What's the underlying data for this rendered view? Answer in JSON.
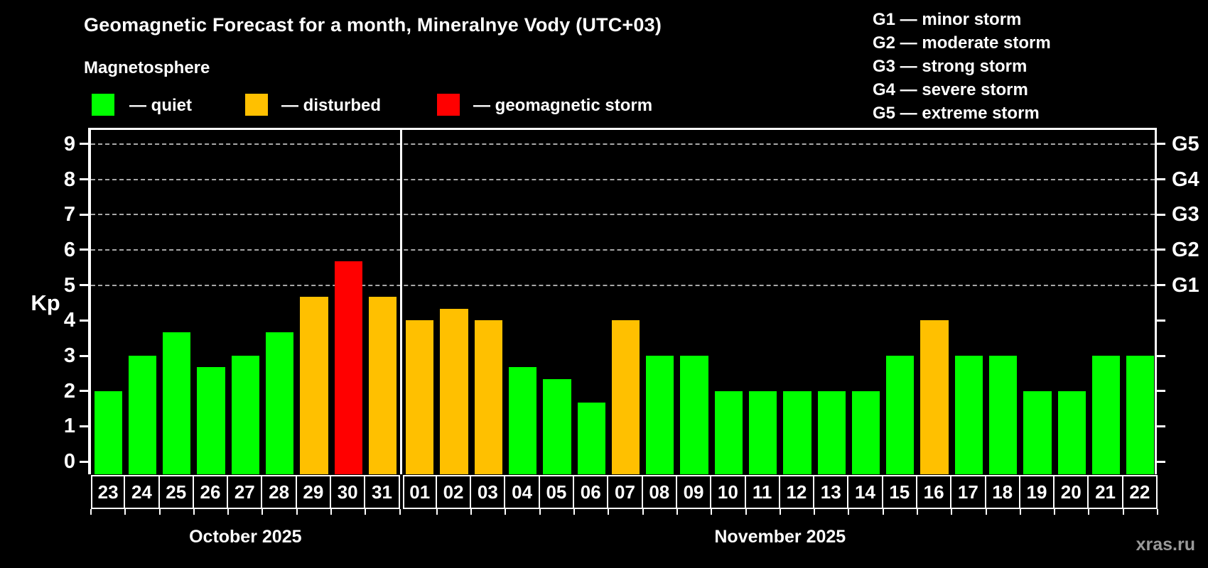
{
  "title": "Geomagnetic Forecast for a month, Mineralnye Vody (UTC+03)",
  "subtitle": "Magnetosphere",
  "legend": [
    {
      "key": "quiet",
      "label": "— quiet",
      "color": "#00ff00"
    },
    {
      "key": "disturbed",
      "label": "— disturbed",
      "color": "#ffc000"
    },
    {
      "key": "storm",
      "label": "— geomagnetic storm",
      "color": "#ff0000"
    }
  ],
  "g_scale_legend": [
    "G1 — minor storm",
    "G2 — moderate storm",
    "G3 — strong storm",
    "G4 — severe storm",
    "G5 — extreme storm"
  ],
  "kp_axis_label": "Kp",
  "watermark": "xras.ru",
  "chart_data": {
    "type": "bar",
    "ylabel": "Kp",
    "ylim": [
      0,
      9
    ],
    "y_ticks": [
      0,
      1,
      2,
      3,
      4,
      5,
      6,
      7,
      8,
      9
    ],
    "gridlines_at": [
      5,
      6,
      7,
      8,
      9
    ],
    "right_axis_labels": [
      {
        "value": 5,
        "label": "G1"
      },
      {
        "value": 6,
        "label": "G2"
      },
      {
        "value": 7,
        "label": "G3"
      },
      {
        "value": 8,
        "label": "G4"
      },
      {
        "value": 9,
        "label": "G5"
      }
    ],
    "months": [
      {
        "label": "October 2025",
        "days": 9
      },
      {
        "label": "November 2025",
        "days": 22
      }
    ],
    "categories": [
      "23",
      "24",
      "25",
      "26",
      "27",
      "28",
      "29",
      "30",
      "31",
      "01",
      "02",
      "03",
      "04",
      "05",
      "06",
      "07",
      "08",
      "09",
      "10",
      "11",
      "12",
      "13",
      "14",
      "15",
      "16",
      "17",
      "18",
      "19",
      "20",
      "21",
      "22"
    ],
    "values": [
      2,
      3,
      3.67,
      2.67,
      3,
      3.67,
      4.67,
      5.67,
      4.67,
      4,
      4.33,
      4,
      2.67,
      2.33,
      1.67,
      4,
      3,
      3,
      2,
      2,
      2,
      2,
      2,
      3,
      4,
      3,
      3,
      2,
      2,
      3,
      3
    ],
    "statuses": [
      "quiet",
      "quiet",
      "quiet",
      "quiet",
      "quiet",
      "quiet",
      "disturbed",
      "storm",
      "disturbed",
      "disturbed",
      "disturbed",
      "disturbed",
      "quiet",
      "quiet",
      "quiet",
      "disturbed",
      "quiet",
      "quiet",
      "quiet",
      "quiet",
      "quiet",
      "quiet",
      "quiet",
      "quiet",
      "disturbed",
      "quiet",
      "quiet",
      "quiet",
      "quiet",
      "quiet",
      "quiet"
    ],
    "colors": {
      "quiet": "#00ff00",
      "disturbed": "#ffc000",
      "storm": "#ff0000"
    },
    "grid": true,
    "legend_position": "top-left"
  }
}
